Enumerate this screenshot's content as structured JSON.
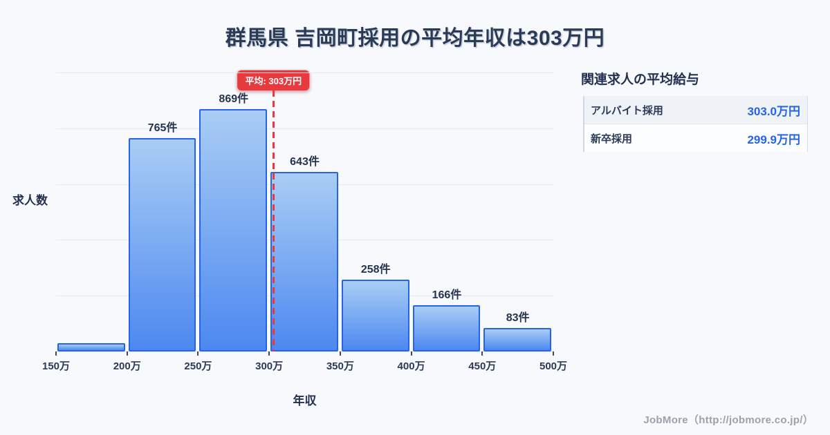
{
  "header": {
    "title": "群馬県 吉岡町採用の平均年収は303万円"
  },
  "chart_data": {
    "type": "bar",
    "title": "群馬県 吉岡町採用の平均年収は303万円",
    "xlabel": "年収",
    "ylabel": "求人数",
    "x_tick_labels": [
      "150万",
      "200万",
      "250万",
      "300万",
      "350万",
      "400万",
      "450万",
      "500万"
    ],
    "bin_edges_man_yen": [
      150,
      200,
      250,
      300,
      350,
      400,
      450,
      500
    ],
    "values": [
      30,
      765,
      869,
      643,
      258,
      166,
      83
    ],
    "bar_labels": [
      "",
      "765件",
      "869件",
      "643件",
      "258件",
      "166件",
      "83件"
    ],
    "ylim": [
      0,
      1020
    ],
    "gridline_values": [
      0,
      200,
      400,
      600,
      800,
      1000
    ],
    "grid": true,
    "legend": "none",
    "average": {
      "value_man_yen": 303,
      "badge_label": "平均: 303万円",
      "line_color": "#e8393f"
    },
    "colors": {
      "bar_fill_top": "#a9cdf4",
      "bar_fill_bottom": "#4c88f0",
      "bar_border": "#2563eb",
      "gridline": "#e4e9f1",
      "label_text": "#25334d"
    }
  },
  "side_panel": {
    "heading": "関連求人の平均給与",
    "rows": [
      {
        "label": "アルバイト採用",
        "value": "303.0万円"
      },
      {
        "label": "新卒採用",
        "value": "299.9万円"
      }
    ],
    "value_color": "#2563eb"
  },
  "footer": {
    "credit": "JobMore（http://jobmore.co.jp/）"
  }
}
